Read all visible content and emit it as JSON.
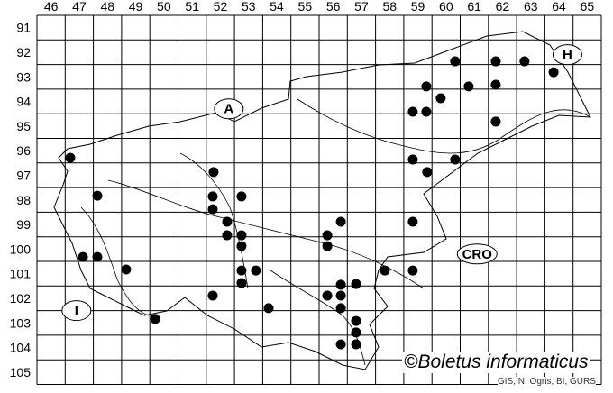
{
  "map": {
    "columns": [
      46,
      47,
      48,
      49,
      50,
      51,
      52,
      53,
      54,
      55,
      56,
      57,
      58,
      59,
      60,
      61,
      62,
      63,
      64,
      65
    ],
    "rows": [
      91,
      92,
      93,
      94,
      95,
      96,
      97,
      98,
      99,
      100,
      101,
      102,
      103,
      104,
      105
    ],
    "country_labels": [
      {
        "text": "A",
        "col": 52.8,
        "row": 94.8
      },
      {
        "text": "H",
        "col": 64.8,
        "row": 92.6
      },
      {
        "text": "CRO",
        "col": 61.6,
        "row": 100.7
      },
      {
        "text": "I",
        "col": 47.4,
        "row": 103.0
      }
    ],
    "records": [
      [
        60.82,
        92.87
      ],
      [
        62.26,
        92.87
      ],
      [
        63.28,
        92.87
      ],
      [
        64.31,
        93.31
      ],
      [
        59.8,
        93.89
      ],
      [
        61.3,
        93.89
      ],
      [
        62.26,
        93.82
      ],
      [
        60.31,
        94.37
      ],
      [
        59.32,
        94.92
      ],
      [
        59.8,
        94.92
      ],
      [
        62.26,
        95.32
      ],
      [
        47.18,
        96.79
      ],
      [
        59.32,
        96.86
      ],
      [
        60.82,
        96.86
      ],
      [
        59.83,
        97.37
      ],
      [
        52.26,
        97.37
      ],
      [
        48.14,
        98.33
      ],
      [
        52.23,
        98.36
      ],
      [
        53.25,
        98.36
      ],
      [
        52.23,
        98.88
      ],
      [
        52.74,
        99.39
      ],
      [
        56.77,
        99.39
      ],
      [
        59.32,
        99.39
      ],
      [
        52.74,
        99.94
      ],
      [
        53.25,
        99.94
      ],
      [
        56.29,
        99.94
      ],
      [
        53.25,
        100.38
      ],
      [
        56.29,
        100.38
      ],
      [
        47.63,
        100.82
      ],
      [
        48.14,
        100.82
      ],
      [
        49.16,
        101.33
      ],
      [
        53.25,
        101.37
      ],
      [
        53.76,
        101.37
      ],
      [
        58.33,
        101.37
      ],
      [
        59.32,
        101.37
      ],
      [
        53.25,
        101.88
      ],
      [
        56.77,
        101.95
      ],
      [
        57.31,
        101.92
      ],
      [
        52.23,
        102.39
      ],
      [
        56.29,
        102.39
      ],
      [
        56.77,
        102.39
      ],
      [
        54.21,
        102.9
      ],
      [
        56.77,
        102.9
      ],
      [
        50.19,
        103.34
      ],
      [
        57.31,
        103.42
      ],
      [
        57.31,
        103.89
      ],
      [
        56.77,
        104.37
      ],
      [
        57.31,
        104.37
      ]
    ],
    "dot_color": "#000000",
    "copyright": "©Boletus informaticus",
    "credits": "GIS, N. Ogris, BI, GURS"
  }
}
